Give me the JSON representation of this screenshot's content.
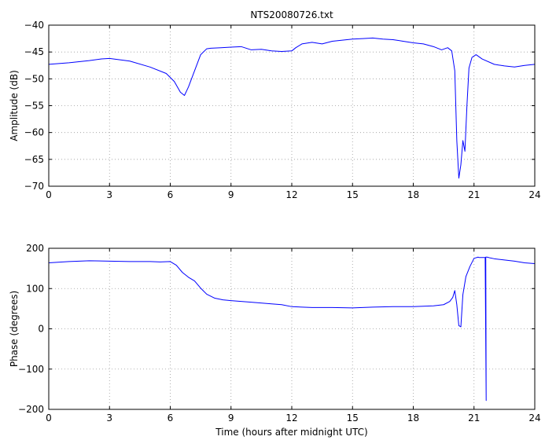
{
  "window": {
    "title": "NTS20080726.txt"
  },
  "colors": {
    "series": "#0000ff",
    "background": "#ffffff",
    "axes": "#000000",
    "grid": "#9a9a9a"
  },
  "chart_data": [
    {
      "type": "line",
      "title": "NTS20080726.txt",
      "xlabel": "",
      "ylabel": "Amplitude (dB)",
      "xlim": [
        0,
        24
      ],
      "ylim": [
        -70,
        -40
      ],
      "xticks": [
        0,
        3,
        6,
        9,
        12,
        15,
        18,
        21,
        24
      ],
      "yticks": [
        -70,
        -65,
        -60,
        -55,
        -50,
        -45,
        -40
      ],
      "grid": true,
      "series": [
        {
          "color": "#0000ff",
          "x": [
            0,
            1,
            2,
            2.6,
            3,
            4,
            5,
            5.8,
            6.2,
            6.5,
            6.7,
            6.9,
            7.2,
            7.5,
            7.8,
            8,
            8.5,
            9,
            9.5,
            10,
            10.5,
            11,
            11.5,
            12,
            12.2,
            12.5,
            13,
            13.5,
            14,
            14.5,
            15,
            15.5,
            16,
            16.5,
            17,
            17.5,
            18,
            18.5,
            19,
            19.4,
            19.7,
            19.9,
            20.05,
            20.15,
            20.25,
            20.35,
            20.45,
            20.55,
            20.65,
            20.75,
            20.9,
            21.1,
            21.4,
            22,
            22.5,
            23,
            23.5,
            24
          ],
          "values": [
            -47.3,
            -47,
            -46.6,
            -46.3,
            -46.2,
            -46.7,
            -47.8,
            -49,
            -50.5,
            -52.5,
            -53.1,
            -51.5,
            -48.5,
            -45.5,
            -44.4,
            -44.3,
            -44.2,
            -44.1,
            -44,
            -44.6,
            -44.5,
            -44.8,
            -44.9,
            -44.8,
            -44.2,
            -43.5,
            -43.2,
            -43.5,
            -43,
            -42.8,
            -42.6,
            -42.5,
            -42.4,
            -42.6,
            -42.7,
            -43,
            -43.3,
            -43.5,
            -44,
            -44.6,
            -44.2,
            -44.8,
            -48.5,
            -61.5,
            -68.5,
            -66,
            -61.5,
            -63.5,
            -55,
            -48,
            -46,
            -45.5,
            -46.3,
            -47.3,
            -47.6,
            -47.8,
            -47.5,
            -47.3
          ]
        }
      ]
    },
    {
      "type": "line",
      "title": "",
      "xlabel": "Time (hours after midnight UTC)",
      "ylabel": "Phase (degrees)",
      "xlim": [
        0,
        24
      ],
      "ylim": [
        -200,
        200
      ],
      "xticks": [
        0,
        3,
        6,
        9,
        12,
        15,
        18,
        21,
        24
      ],
      "yticks": [
        -200,
        -100,
        0,
        100,
        200
      ],
      "grid": true,
      "series": [
        {
          "color": "#0000ff",
          "x": [
            0,
            1,
            2,
            3,
            4,
            5,
            5.5,
            6,
            6.3,
            6.6,
            6.9,
            7.2,
            7.5,
            7.8,
            8.2,
            8.6,
            9,
            10,
            11,
            11.5,
            12,
            13,
            14,
            15,
            16,
            17,
            18,
            19,
            19.5,
            19.8,
            19.95,
            20.05,
            20.15,
            20.25,
            20.35,
            20.45,
            20.6,
            20.8,
            21,
            21.2,
            21.25,
            21.3,
            21.55,
            21.6,
            21.58,
            21.65,
            21.8,
            22,
            22.5,
            23,
            23.5,
            24
          ],
          "values": [
            164,
            167,
            169,
            168,
            167,
            167,
            166,
            167,
            158,
            140,
            128,
            119,
            101,
            86,
            76,
            72,
            70,
            66,
            62,
            60,
            55,
            53,
            53,
            52,
            54,
            55,
            55,
            57,
            60,
            68,
            78,
            95,
            60,
            8,
            5,
            85,
            130,
            155,
            175,
            178,
            177,
            177,
            177,
            -178,
            178,
            178,
            176,
            174,
            171,
            168,
            164,
            162
          ]
        }
      ]
    }
  ]
}
